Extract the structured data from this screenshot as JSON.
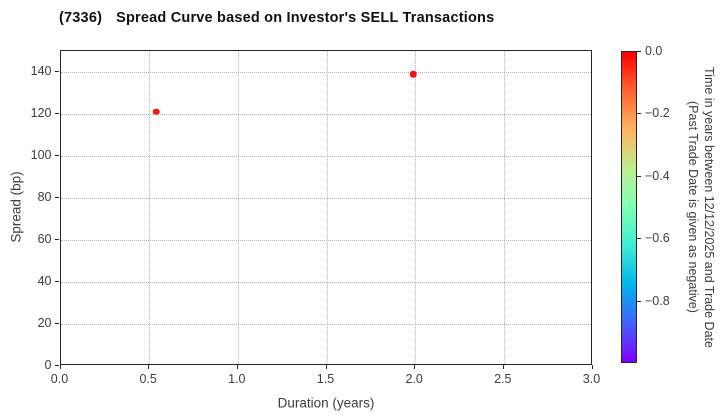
{
  "title": {
    "code": "(7336)",
    "text": "Spread Curve based on Investor's SELL Transactions"
  },
  "chart_data": {
    "type": "scatter",
    "title": "(7336)   Spread Curve based on Investor's SELL Transactions",
    "xlabel": "Duration (years)",
    "ylabel": "Spread (bp)",
    "xlim": [
      0.0,
      3.0
    ],
    "ylim": [
      0,
      150
    ],
    "grid": true,
    "xticks": [
      0.0,
      0.5,
      1.0,
      1.5,
      2.0,
      2.5,
      3.0
    ],
    "xtick_labels": [
      "0.0",
      "0.5",
      "1.0",
      "1.5",
      "2.0",
      "2.5",
      "3.0"
    ],
    "yticks": [
      0,
      20,
      40,
      60,
      80,
      100,
      120,
      140
    ],
    "ytick_labels": [
      "0",
      "20",
      "40",
      "60",
      "80",
      "100",
      "120",
      "140"
    ],
    "points": [
      {
        "x": 0.54,
        "y": 121,
        "color_value": 0.0,
        "color": "#f8150f"
      },
      {
        "x": 1.99,
        "y": 139,
        "color_value": 0.0,
        "color": "#f8150f"
      }
    ],
    "colorbar": {
      "label_line1": "Time in years between 12/12/2025 and Trade Date",
      "label_line2": "(Past Trade Date is given as negative)",
      "range": [
        0.0,
        -1.0
      ],
      "tick_values": [
        0.0,
        -0.2,
        -0.4,
        -0.6,
        -0.8
      ],
      "tick_labels": [
        "0.0",
        "−0.2",
        "−0.4",
        "−0.6",
        "−0.8"
      ],
      "colormap": "rainbow",
      "gradient": [
        "#ff0000",
        "#ff6232",
        "#ffb462",
        "#bfec8e",
        "#80ffb4",
        "#40ecd4",
        "#00b4ec",
        "#4062fa",
        "#8000ff"
      ]
    }
  },
  "colors": {
    "frame": "#262626",
    "grid": "#b5b5b5",
    "tick_text": "#3d3d3d",
    "title_text": "#111111",
    "point_red": "#f8150f",
    "background": "#ffffff"
  }
}
